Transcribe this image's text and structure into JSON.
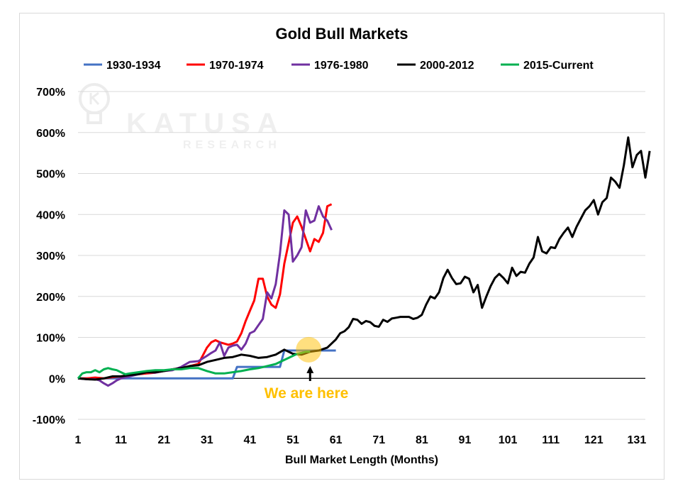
{
  "chart_data": {
    "type": "line",
    "title": "Gold Bull Markets",
    "xlabel": "Bull Market Length (Months)",
    "ylabel": "",
    "xlim": [
      1,
      133
    ],
    "ylim": [
      -100,
      700
    ],
    "x_ticks": [
      "1",
      "11",
      "21",
      "31",
      "41",
      "51",
      "61",
      "71",
      "81",
      "91",
      "101",
      "111",
      "121",
      "131"
    ],
    "y_ticks": [
      "-100%",
      "0%",
      "100%",
      "200%",
      "300%",
      "400%",
      "500%",
      "600%",
      "700%"
    ],
    "grid": "horizontal",
    "legend_position": "top",
    "watermark": {
      "line1": "KATUSA",
      "line2": "RESEARCH"
    },
    "annotation": {
      "text": "We are here",
      "color": "#FFC000",
      "x": 55,
      "y": 70
    },
    "series": [
      {
        "name": "1930-1934",
        "color": "#4472C4",
        "points": [
          [
            1,
            0
          ],
          [
            10,
            0
          ],
          [
            20,
            0
          ],
          [
            30,
            0
          ],
          [
            37,
            0
          ],
          [
            38,
            28
          ],
          [
            48,
            28
          ],
          [
            49,
            68
          ],
          [
            61,
            68
          ]
        ]
      },
      {
        "name": "1970-1974",
        "color": "#FF0000",
        "points": [
          [
            1,
            0
          ],
          [
            3,
            0
          ],
          [
            5,
            2
          ],
          [
            7,
            0
          ],
          [
            9,
            3
          ],
          [
            11,
            5
          ],
          [
            13,
            8
          ],
          [
            15,
            10
          ],
          [
            17,
            12
          ],
          [
            19,
            14
          ],
          [
            21,
            18
          ],
          [
            23,
            22
          ],
          [
            25,
            25
          ],
          [
            27,
            30
          ],
          [
            29,
            35
          ],
          [
            31,
            75
          ],
          [
            32,
            88
          ],
          [
            33,
            93
          ],
          [
            34,
            88
          ],
          [
            35,
            85
          ],
          [
            36,
            82
          ],
          [
            37,
            85
          ],
          [
            38,
            90
          ],
          [
            39,
            110
          ],
          [
            40,
            140
          ],
          [
            41,
            165
          ],
          [
            42,
            190
          ],
          [
            43,
            243
          ],
          [
            44,
            243
          ],
          [
            45,
            200
          ],
          [
            46,
            180
          ],
          [
            47,
            172
          ],
          [
            48,
            205
          ],
          [
            49,
            280
          ],
          [
            50,
            330
          ],
          [
            51,
            380
          ],
          [
            52,
            395
          ],
          [
            53,
            370
          ],
          [
            54,
            340
          ],
          [
            55,
            310
          ],
          [
            56,
            340
          ],
          [
            57,
            333
          ],
          [
            58,
            355
          ],
          [
            59,
            420
          ],
          [
            60,
            425
          ]
        ]
      },
      {
        "name": "1976-1980",
        "color": "#7030A0",
        "points": [
          [
            1,
            0
          ],
          [
            3,
            -2
          ],
          [
            5,
            -2
          ],
          [
            6,
            -5
          ],
          [
            7,
            -12
          ],
          [
            8,
            -18
          ],
          [
            9,
            -12
          ],
          [
            10,
            -5
          ],
          [
            11,
            0
          ],
          [
            13,
            5
          ],
          [
            15,
            10
          ],
          [
            17,
            15
          ],
          [
            19,
            14
          ],
          [
            21,
            18
          ],
          [
            23,
            20
          ],
          [
            25,
            28
          ],
          [
            27,
            40
          ],
          [
            29,
            42
          ],
          [
            31,
            55
          ],
          [
            32,
            62
          ],
          [
            33,
            68
          ],
          [
            34,
            88
          ],
          [
            35,
            55
          ],
          [
            36,
            75
          ],
          [
            37,
            80
          ],
          [
            38,
            82
          ],
          [
            39,
            70
          ],
          [
            40,
            85
          ],
          [
            41,
            110
          ],
          [
            42,
            115
          ],
          [
            43,
            130
          ],
          [
            44,
            145
          ],
          [
            45,
            210
          ],
          [
            46,
            195
          ],
          [
            47,
            230
          ],
          [
            48,
            305
          ],
          [
            49,
            410
          ],
          [
            50,
            400
          ],
          [
            51,
            285
          ],
          [
            52,
            300
          ],
          [
            53,
            320
          ],
          [
            54,
            410
          ],
          [
            55,
            380
          ],
          [
            56,
            385
          ],
          [
            57,
            420
          ],
          [
            58,
            395
          ],
          [
            59,
            385
          ],
          [
            60,
            362
          ]
        ]
      },
      {
        "name": "2000-2012",
        "color": "#000000",
        "points": [
          [
            1,
            0
          ],
          [
            3,
            -2
          ],
          [
            5,
            -3
          ],
          [
            7,
            0
          ],
          [
            9,
            5
          ],
          [
            11,
            5
          ],
          [
            13,
            8
          ],
          [
            15,
            10
          ],
          [
            17,
            15
          ],
          [
            19,
            15
          ],
          [
            21,
            18
          ],
          [
            23,
            22
          ],
          [
            25,
            25
          ],
          [
            27,
            30
          ],
          [
            29,
            32
          ],
          [
            31,
            40
          ],
          [
            33,
            45
          ],
          [
            35,
            50
          ],
          [
            37,
            52
          ],
          [
            39,
            58
          ],
          [
            41,
            55
          ],
          [
            43,
            50
          ],
          [
            45,
            52
          ],
          [
            47,
            58
          ],
          [
            49,
            70
          ],
          [
            51,
            60
          ],
          [
            53,
            58
          ],
          [
            55,
            65
          ],
          [
            57,
            68
          ],
          [
            59,
            75
          ],
          [
            61,
            95
          ],
          [
            62,
            110
          ],
          [
            63,
            115
          ],
          [
            64,
            125
          ],
          [
            65,
            145
          ],
          [
            66,
            143
          ],
          [
            67,
            133
          ],
          [
            68,
            140
          ],
          [
            69,
            137
          ],
          [
            70,
            128
          ],
          [
            71,
            126
          ],
          [
            72,
            143
          ],
          [
            73,
            138
          ],
          [
            74,
            146
          ],
          [
            75,
            148
          ],
          [
            76,
            150
          ],
          [
            77,
            150
          ],
          [
            78,
            150
          ],
          [
            79,
            145
          ],
          [
            80,
            148
          ],
          [
            81,
            155
          ],
          [
            82,
            180
          ],
          [
            83,
            200
          ],
          [
            84,
            195
          ],
          [
            85,
            210
          ],
          [
            86,
            245
          ],
          [
            87,
            265
          ],
          [
            88,
            245
          ],
          [
            89,
            230
          ],
          [
            90,
            232
          ],
          [
            91,
            248
          ],
          [
            92,
            243
          ],
          [
            93,
            210
          ],
          [
            94,
            228
          ],
          [
            95,
            172
          ],
          [
            96,
            200
          ],
          [
            97,
            225
          ],
          [
            98,
            245
          ],
          [
            99,
            255
          ],
          [
            100,
            245
          ],
          [
            101,
            232
          ],
          [
            102,
            270
          ],
          [
            103,
            250
          ],
          [
            104,
            260
          ],
          [
            105,
            258
          ],
          [
            106,
            280
          ],
          [
            107,
            295
          ],
          [
            108,
            345
          ],
          [
            109,
            310
          ],
          [
            110,
            305
          ],
          [
            111,
            320
          ],
          [
            112,
            318
          ],
          [
            113,
            340
          ],
          [
            114,
            355
          ],
          [
            115,
            368
          ],
          [
            116,
            345
          ],
          [
            117,
            370
          ],
          [
            118,
            390
          ],
          [
            119,
            410
          ],
          [
            120,
            420
          ],
          [
            121,
            435
          ],
          [
            122,
            400
          ],
          [
            123,
            430
          ],
          [
            124,
            440
          ],
          [
            125,
            490
          ],
          [
            126,
            480
          ],
          [
            127,
            465
          ],
          [
            128,
            520
          ],
          [
            129,
            588
          ],
          [
            130,
            515
          ],
          [
            131,
            545
          ],
          [
            132,
            555
          ],
          [
            133,
            490
          ],
          [
            134,
            555
          ]
        ]
      },
      {
        "name": "2015-Current",
        "color": "#00B050",
        "points": [
          [
            1,
            0
          ],
          [
            2,
            12
          ],
          [
            3,
            15
          ],
          [
            4,
            15
          ],
          [
            5,
            20
          ],
          [
            6,
            15
          ],
          [
            7,
            22
          ],
          [
            8,
            25
          ],
          [
            9,
            22
          ],
          [
            10,
            20
          ],
          [
            11,
            15
          ],
          [
            12,
            10
          ],
          [
            13,
            12
          ],
          [
            15,
            15
          ],
          [
            17,
            18
          ],
          [
            19,
            20
          ],
          [
            21,
            20
          ],
          [
            23,
            22
          ],
          [
            25,
            22
          ],
          [
            27,
            25
          ],
          [
            29,
            25
          ],
          [
            31,
            18
          ],
          [
            33,
            12
          ],
          [
            35,
            12
          ],
          [
            37,
            15
          ],
          [
            39,
            18
          ],
          [
            41,
            22
          ],
          [
            43,
            25
          ],
          [
            45,
            30
          ],
          [
            47,
            35
          ],
          [
            48,
            40
          ],
          [
            49,
            45
          ],
          [
            50,
            50
          ],
          [
            51,
            55
          ],
          [
            52,
            60
          ],
          [
            53,
            62
          ],
          [
            54,
            65
          ],
          [
            55,
            65
          ]
        ]
      }
    ]
  }
}
